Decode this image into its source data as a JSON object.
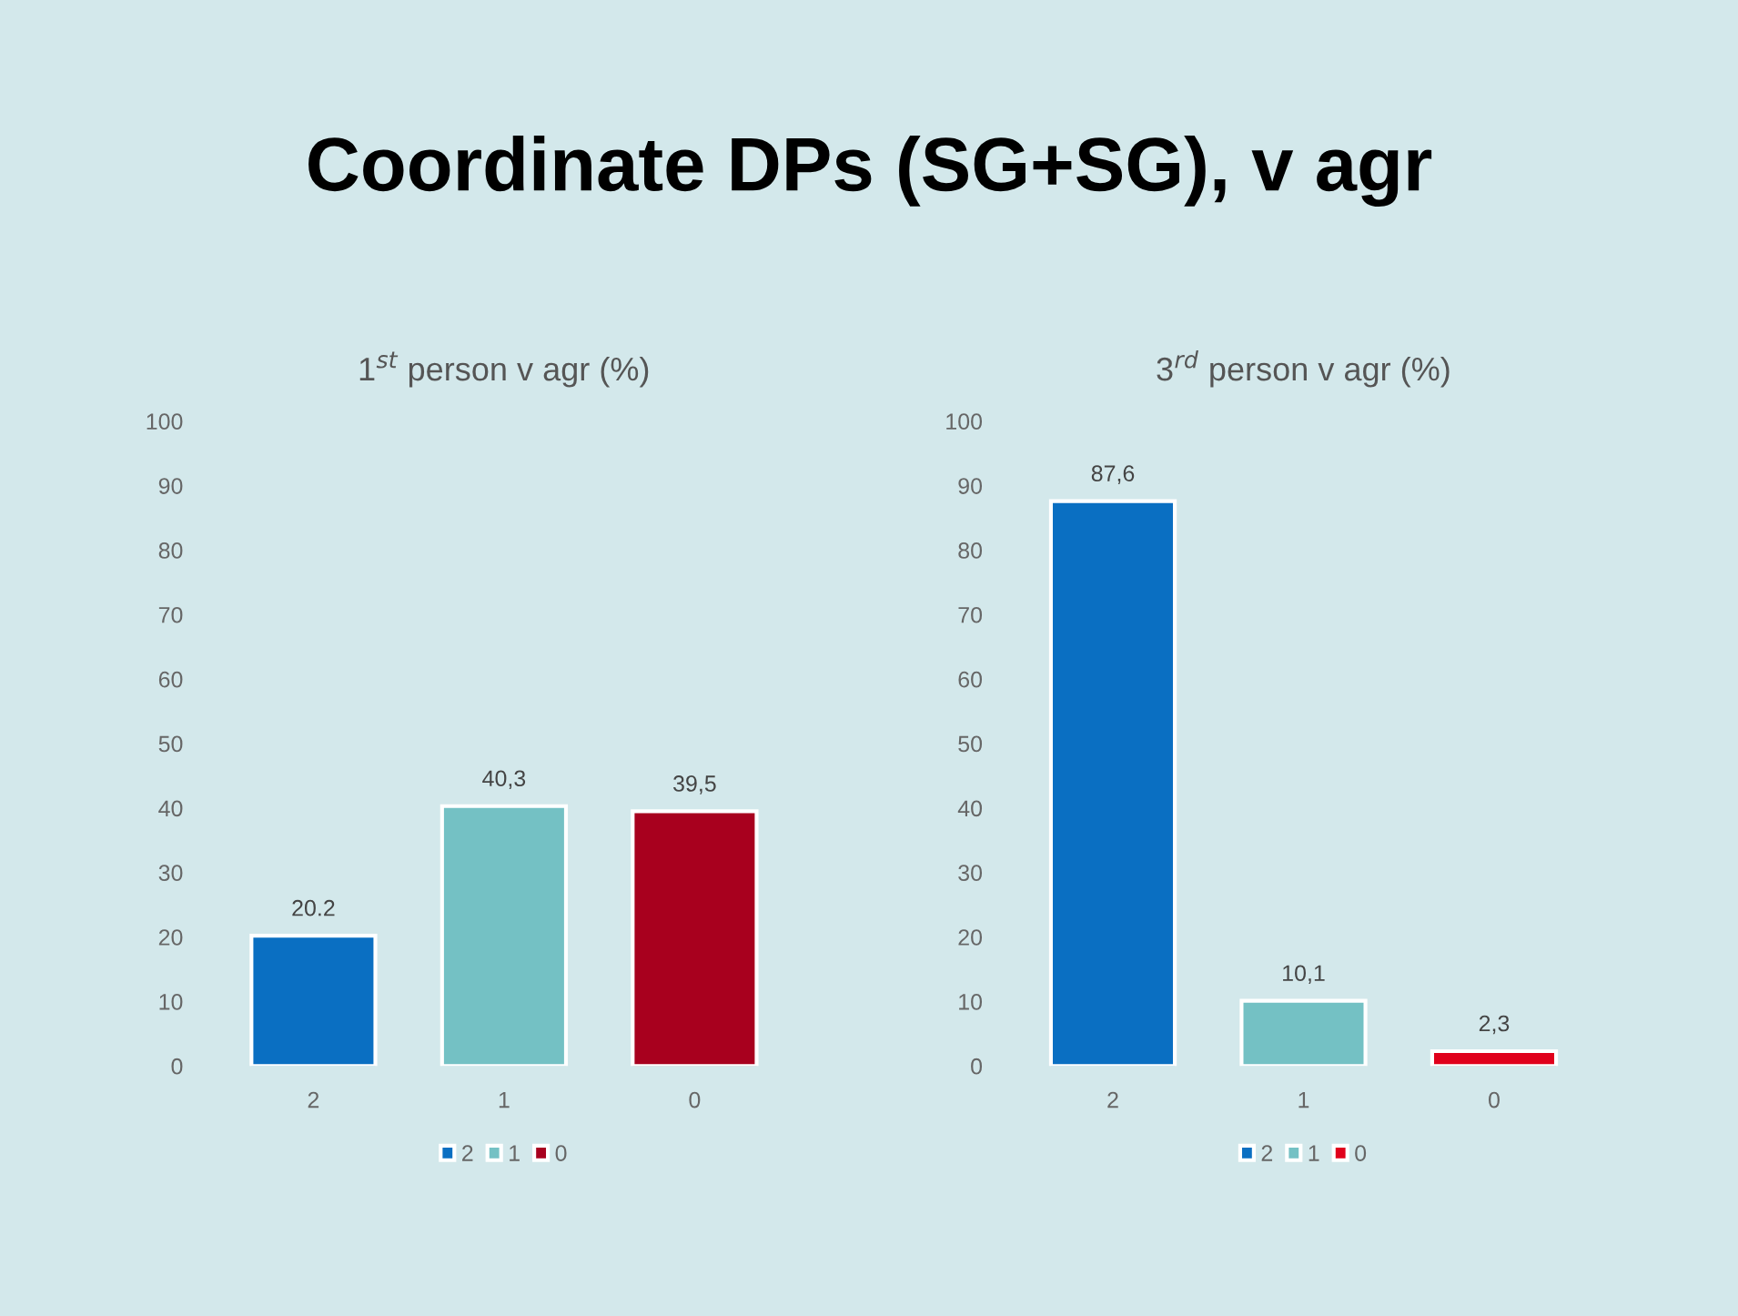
{
  "chart_data": [
    {
      "type": "bar",
      "title": "Coordinate DPs (SG+SG), v agr",
      "subtitle": "1$^{st}$ person v agr (%)",
      "categories": [
        "2",
        "1",
        "0"
      ],
      "series": [
        {
          "name": "2",
          "color": "#0a6fc2",
          "values": [
            20.2,
            null,
            null
          ],
          "value_labels": [
            "20.2",
            null,
            null
          ]
        },
        {
          "name": "1",
          "color": "#74c1c4",
          "values": [
            null,
            40.3,
            null
          ],
          "value_labels": [
            null,
            "40,3",
            null
          ]
        },
        {
          "name": "0",
          "color": "#a8001e",
          "values": [
            null,
            null,
            39.5
          ],
          "value_labels": [
            null,
            null,
            "39,5"
          ]
        }
      ],
      "ylim": [
        0,
        100
      ],
      "yticks": [
        0,
        10,
        20,
        30,
        40,
        50,
        60,
        70,
        80,
        90,
        100
      ],
      "legend": "bottom"
    },
    {
      "type": "bar",
      "subtitle": "3$^{rd}$ person v agr (%)",
      "categories": [
        "2",
        "1",
        "0"
      ],
      "series": [
        {
          "name": "2",
          "color": "#0a6fc2",
          "values": [
            87.6,
            null,
            null
          ],
          "value_labels": [
            "87,6",
            null,
            null
          ]
        },
        {
          "name": "1",
          "color": "#74c1c4",
          "values": [
            null,
            10.1,
            null
          ],
          "value_labels": [
            null,
            "10,1",
            null
          ]
        },
        {
          "name": "0",
          "color": "#e0001b",
          "values": [
            null,
            null,
            2.3
          ],
          "value_labels": [
            null,
            null,
            "2,3"
          ]
        }
      ],
      "ylim": [
        0,
        100
      ],
      "yticks": [
        0,
        10,
        20,
        30,
        40,
        50,
        60,
        70,
        80,
        90,
        100
      ],
      "legend": "bottom"
    }
  ]
}
